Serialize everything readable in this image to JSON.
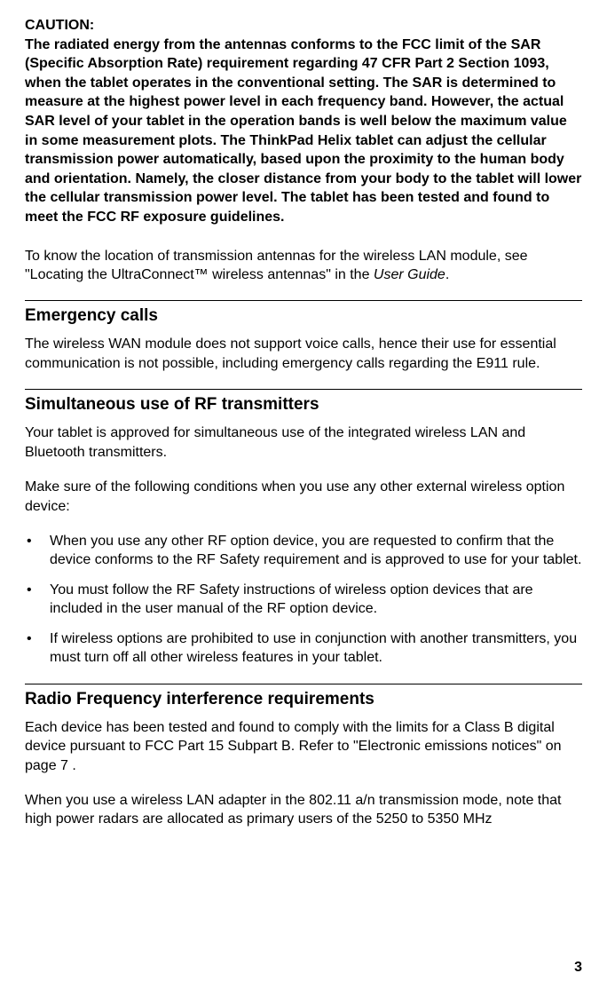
{
  "caution": {
    "label": "CAUTION:",
    "body": "The radiated energy from the antennas conforms to the FCC limit of the SAR (Specific Absorption Rate) requirement regarding 47 CFR Part 2 Section 1093, when the tablet operates in the conventional setting. The SAR is determined to measure at the highest power level in each frequency band. However, the actual SAR level of your tablet in the operation bands is well below the maximum value in some measurement plots. The ThinkPad Helix tablet can adjust the cellular transmission power automatically, based upon the proximity to the human body and orientation. Namely, the closer distance from your body to the tablet will lower the cellular transmission power level. The tablet has been tested and found to meet the FCC RF exposure guidelines."
  },
  "antenna_para_pre": "To know the location of transmission antennas for the wireless LAN module, see \"Locating the UltraConnect™ wireless antennas\" in the ",
  "antenna_para_ital": "User Guide",
  "antenna_para_post": ".",
  "emergency": {
    "heading": "Emergency calls",
    "body": "The wireless WAN module does not support voice calls, hence their use for essential communication is not possible, including emergency calls regarding the E911 rule."
  },
  "simul": {
    "heading": "Simultaneous use of RF transmitters",
    "intro1": "Your tablet is approved for simultaneous use of the integrated wireless LAN and Bluetooth transmitters.",
    "intro2": "Make sure of the following conditions when you use any other external wireless option device:",
    "bullets": [
      "When you use any other RF option device, you are requested to confirm that the device conforms to the RF Safety requirement and is approved to use for your tablet.",
      "You must follow the RF Safety instructions of wireless option devices that are included in the user manual of the RF option device.",
      "If wireless options are prohibited to use in conjunction with another transmitters, you must turn off all other wireless features in your tablet."
    ]
  },
  "rfi": {
    "heading": "Radio Frequency interference requirements",
    "p1": "Each device has been tested and found to comply with the limits for a Class B digital device pursuant to FCC Part 15 Subpart B. Refer to \"Electronic emissions notices\" on page  7 .",
    "p2": "When you use a wireless LAN adapter in the 802.11 a/n transmission mode, note that high power radars are allocated as primary users of the 5250 to 5350 MHz"
  },
  "page_number": "3"
}
